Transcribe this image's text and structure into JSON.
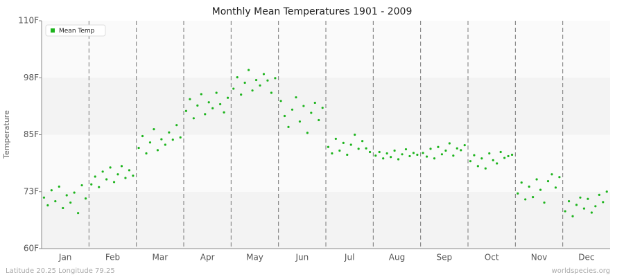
{
  "chart_data": {
    "type": "scatter",
    "title": "Monthly Mean Temperatures 1901 - 2009",
    "y_label": "Temperature",
    "footer_left": "Latitude 20.25 Longitude 79.25",
    "footer_right": "worldspecies.org",
    "categories": [
      "Jan",
      "Feb",
      "Mar",
      "Apr",
      "May",
      "Jun",
      "Jul",
      "Aug",
      "Sep",
      "Oct",
      "Nov",
      "Dec"
    ],
    "xlim": [
      0,
      12
    ],
    "ylim": [
      60,
      110
    ],
    "yticks": [
      {
        "value": 60,
        "label": "60F"
      },
      {
        "value": 72.5,
        "label": "73F"
      },
      {
        "value": 85,
        "label": "85F"
      },
      {
        "value": 97.5,
        "label": "98F"
      },
      {
        "value": 110,
        "label": "110F"
      }
    ],
    "legend": "top-left",
    "series": [
      {
        "name": "Mean Temp",
        "color": "#1db41d",
        "x": [
          0.05,
          0.13,
          0.21,
          0.29,
          0.37,
          0.45,
          0.53,
          0.61,
          0.69,
          0.77,
          0.85,
          0.93,
          1.05,
          1.13,
          1.21,
          1.29,
          1.37,
          1.45,
          1.53,
          1.61,
          1.69,
          1.77,
          1.85,
          1.93,
          2.05,
          2.13,
          2.21,
          2.29,
          2.37,
          2.45,
          2.53,
          2.61,
          2.69,
          2.77,
          2.85,
          2.93,
          3.05,
          3.13,
          3.21,
          3.29,
          3.37,
          3.45,
          3.53,
          3.61,
          3.69,
          3.77,
          3.85,
          3.93,
          4.05,
          4.13,
          4.21,
          4.29,
          4.37,
          4.45,
          4.53,
          4.61,
          4.69,
          4.77,
          4.85,
          4.93,
          5.05,
          5.13,
          5.21,
          5.29,
          5.37,
          5.45,
          5.53,
          5.61,
          5.69,
          5.77,
          5.85,
          5.93,
          6.05,
          6.13,
          6.21,
          6.29,
          6.37,
          6.45,
          6.53,
          6.61,
          6.69,
          6.77,
          6.85,
          6.93,
          7.05,
          7.13,
          7.21,
          7.29,
          7.37,
          7.45,
          7.53,
          7.61,
          7.69,
          7.77,
          7.85,
          7.93,
          8.05,
          8.13,
          8.21,
          8.29,
          8.37,
          8.45,
          8.53,
          8.61,
          8.69,
          8.77,
          8.85,
          8.93,
          9.05,
          9.13,
          9.21,
          9.29,
          9.37,
          9.45,
          9.53,
          9.61,
          9.69,
          9.77,
          9.85,
          9.93,
          10.05,
          10.13,
          10.21,
          10.29,
          10.37,
          10.45,
          10.53,
          10.61,
          10.69,
          10.77,
          10.85,
          10.93,
          11.05,
          11.13,
          11.21,
          11.29,
          11.37,
          11.45,
          11.53,
          11.61,
          11.69,
          11.77,
          11.85,
          11.93
        ],
        "values": [
          71.2,
          69.5,
          72.8,
          70.4,
          73.6,
          68.9,
          71.7,
          70.1,
          72.3,
          67.8,
          73.9,
          71.0,
          74.1,
          75.8,
          73.5,
          76.9,
          75.2,
          77.8,
          74.6,
          76.3,
          78.1,
          75.5,
          77.2,
          76.0,
          82.1,
          84.7,
          80.9,
          83.3,
          86.2,
          81.6,
          84.0,
          82.8,
          85.5,
          83.9,
          87.1,
          84.4,
          90.2,
          92.8,
          88.6,
          91.4,
          93.9,
          89.5,
          92.1,
          90.8,
          94.2,
          91.7,
          89.9,
          93.1,
          95.1,
          97.6,
          93.8,
          96.4,
          99.2,
          94.7,
          97.0,
          95.8,
          98.3,
          96.9,
          94.2,
          97.4,
          92.4,
          89.1,
          86.7,
          90.5,
          93.2,
          87.9,
          91.3,
          85.4,
          89.8,
          92.0,
          88.2,
          90.9,
          82.3,
          80.9,
          84.1,
          81.5,
          83.2,
          80.6,
          82.8,
          85.0,
          81.9,
          83.6,
          82.0,
          81.2,
          80.4,
          81.2,
          79.8,
          80.9,
          80.1,
          81.5,
          79.6,
          80.7,
          81.8,
          80.3,
          81.0,
          80.6,
          81.0,
          80.2,
          81.9,
          79.8,
          82.3,
          80.7,
          81.5,
          83.1,
          80.4,
          82.0,
          81.6,
          82.7,
          79.2,
          80.5,
          78.1,
          79.8,
          77.6,
          80.9,
          79.4,
          78.7,
          81.2,
          79.9,
          80.3,
          80.6,
          72.1,
          74.5,
          70.8,
          73.6,
          71.3,
          75.2,
          72.9,
          70.1,
          74.8,
          76.3,
          73.4,
          75.7,
          68.2,
          70.4,
          67.1,
          69.6,
          71.2,
          68.8,
          70.9,
          67.9,
          69.3,
          71.8,
          70.2,
          72.5
        ]
      }
    ]
  }
}
